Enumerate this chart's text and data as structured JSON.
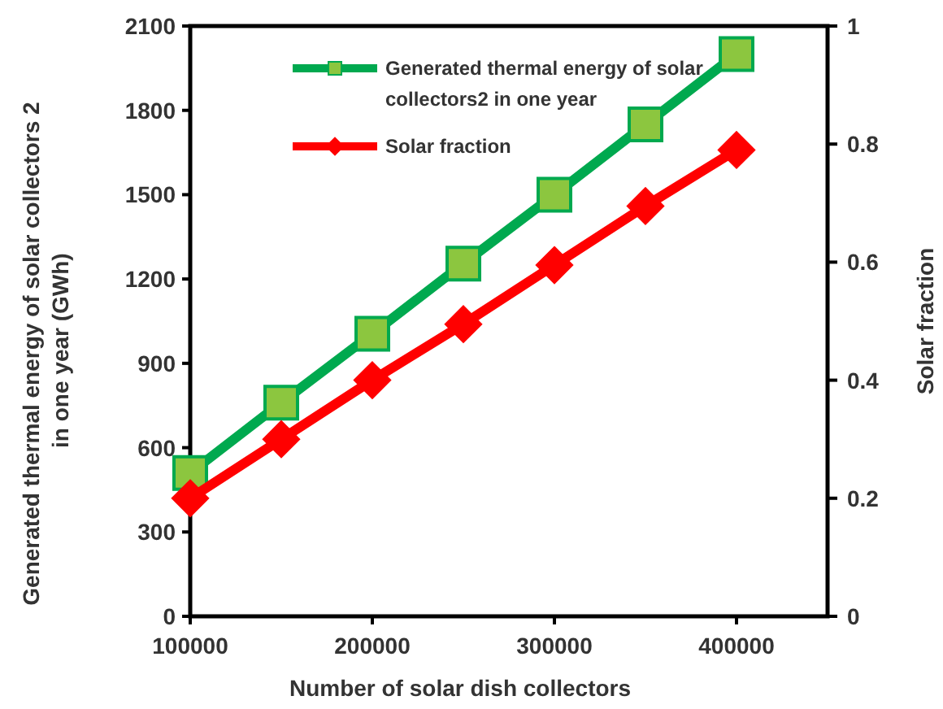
{
  "chart_data": {
    "type": "line",
    "xlabel": "Number of solar dish collectors",
    "ylabel": "Generated thermal energy of solar collectors 2  in one year (GWh)",
    "y2label": "Solar fraction",
    "x": [
      100000,
      150000,
      200000,
      250000,
      300000,
      350000,
      400000
    ],
    "series": [
      {
        "name": "Generated thermal energy of solar collectors2 in one year",
        "color": "#00a94f",
        "marker": "square",
        "values": [
          510,
          760,
          1005,
          1255,
          1500,
          1750,
          2000
        ]
      },
      {
        "name": "Solar fraction",
        "color": "#ff0000",
        "marker": "diamond",
        "axis": "y2",
        "values": [
          0.2,
          0.3,
          0.4,
          0.495,
          0.595,
          0.695,
          0.79
        ]
      }
    ],
    "xlim": [
      100000,
      450000
    ],
    "xticks": [
      100000,
      200000,
      300000,
      400000
    ],
    "ylim": [
      0,
      2100
    ],
    "yticks": [
      0,
      300,
      600,
      900,
      1200,
      1500,
      1800,
      2100
    ],
    "y2lim": [
      0,
      1
    ],
    "y2ticks": [
      0,
      0.2,
      0.4,
      0.6,
      0.8,
      1
    ],
    "grid": false,
    "legend": "top"
  }
}
